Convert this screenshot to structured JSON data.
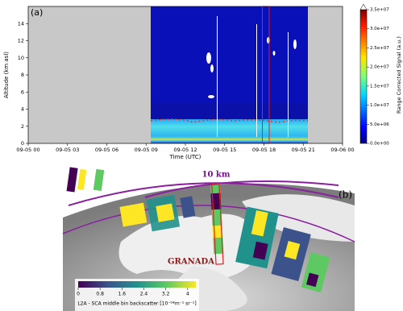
{
  "chart_data": {
    "type": "heatmap",
    "panel_label": "(a)",
    "xlabel": "Time (UTC)",
    "ylabel": "Altitude (km asl)",
    "xlim": [
      0,
      24
    ],
    "xticks": [
      {
        "value": 0,
        "label": "09-05 00"
      },
      {
        "value": 3,
        "label": "09-05 03"
      },
      {
        "value": 6,
        "label": "09-05 06"
      },
      {
        "value": 9,
        "label": "09-05 09"
      },
      {
        "value": 12,
        "label": "09-05 12"
      },
      {
        "value": 15,
        "label": "09-05 15"
      },
      {
        "value": 18,
        "label": "09-05 18"
      },
      {
        "value": 21,
        "label": "09-05 21"
      },
      {
        "value": 24,
        "label": "09-06 00"
      }
    ],
    "ylim": [
      0,
      16
    ],
    "yticks": [
      0,
      2,
      4,
      6,
      8,
      10,
      12,
      14
    ],
    "colorbar": {
      "label": "Range Corrected Signal (a.u.)",
      "lim": [
        0,
        35000000
      ],
      "ticks": [
        {
          "value": 0,
          "label": "0.0e+00"
        },
        {
          "value": 5000000,
          "label": "5.0e+06"
        },
        {
          "value": 10000000,
          "label": "1.0e+07"
        },
        {
          "value": 15000000,
          "label": "1.5e+07"
        },
        {
          "value": 20000000,
          "label": "2.0e+07"
        },
        {
          "value": 25000000,
          "label": "2.5e+07"
        },
        {
          "value": 30000000,
          "label": "3.0e+07"
        },
        {
          "value": 35000000,
          "label": "3.5e+07"
        }
      ]
    }
  },
  "map": {
    "panel_label": "(b)",
    "scale_label": "10 km",
    "site_label": "GRANADA",
    "colorbar": {
      "label": "L2A - SCA middle bin backscatter [10⁻⁶*m⁻¹ sr⁻¹]",
      "lim": [
        0,
        4.3
      ],
      "ticks": [
        0,
        0.8,
        1.6,
        2.4,
        3.2,
        4
      ]
    }
  }
}
